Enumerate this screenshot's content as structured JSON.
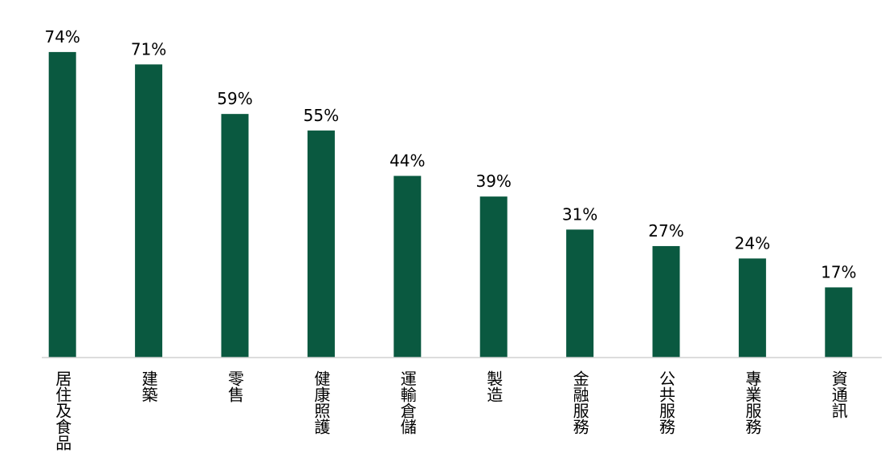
{
  "chart_data": {
    "type": "bar",
    "categories": [
      "居住及食品",
      "建築",
      "零售",
      "健康照護",
      "運輸倉儲",
      "製造",
      "金融服務",
      "公共服務",
      "專業服務",
      "資通訊"
    ],
    "values": [
      74,
      71,
      59,
      55,
      44,
      39,
      31,
      27,
      24,
      17
    ],
    "value_labels": [
      "74%",
      "71%",
      "59%",
      "55%",
      "44%",
      "39%",
      "31%",
      "27%",
      "24%",
      "17%"
    ],
    "color": "#0a5940",
    "ylim": [
      0,
      80
    ]
  }
}
